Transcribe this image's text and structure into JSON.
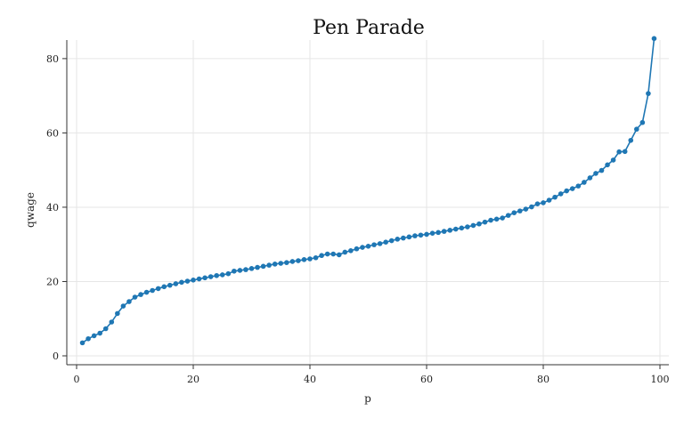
{
  "chart_data": {
    "type": "line",
    "title": "Pen Parade",
    "xlabel": "p",
    "ylabel": "qwage",
    "xlim": [
      0,
      100
    ],
    "ylim": [
      0,
      85
    ],
    "x_ticks": [
      0,
      20,
      40,
      60,
      80,
      100
    ],
    "y_ticks": [
      0,
      20,
      40,
      60,
      80
    ],
    "x_tick_labels": [
      "0",
      "20",
      "40",
      "60",
      "80",
      "100"
    ],
    "y_tick_labels": [
      "0",
      "20",
      "40",
      "60",
      "80"
    ],
    "grid": true,
    "markers": true,
    "color": "#1f77b4",
    "series": [
      {
        "x": [
          1,
          2,
          3,
          4,
          5,
          6,
          7,
          8,
          9,
          10,
          11,
          12,
          13,
          14,
          15,
          16,
          17,
          18,
          19,
          20,
          21,
          22,
          23,
          24,
          25,
          26,
          27,
          28,
          29,
          30,
          31,
          32,
          33,
          34,
          35,
          36,
          37,
          38,
          39,
          40,
          41,
          42,
          43,
          44,
          45,
          46,
          47,
          48,
          49,
          50,
          51,
          52,
          53,
          54,
          55,
          56,
          57,
          58,
          59,
          60,
          61,
          62,
          63,
          64,
          65,
          66,
          67,
          68,
          69,
          70,
          71,
          72,
          73,
          74,
          75,
          76,
          77,
          78,
          79,
          80,
          81,
          82,
          83,
          84,
          85,
          86,
          87,
          88,
          89,
          90,
          91,
          92,
          93,
          94,
          95,
          96,
          97,
          98,
          99
        ],
        "values": [
          3.5,
          4.6,
          5.4,
          6.1,
          7.3,
          9.1,
          11.4,
          13.4,
          14.6,
          15.8,
          16.5,
          17.1,
          17.6,
          18.1,
          18.6,
          19.0,
          19.4,
          19.8,
          20.1,
          20.4,
          20.7,
          21.0,
          21.3,
          21.6,
          21.8,
          22.1,
          22.8,
          23.0,
          23.2,
          23.5,
          23.8,
          24.1,
          24.4,
          24.7,
          24.9,
          25.1,
          25.4,
          25.6,
          25.9,
          26.1,
          26.4,
          27.0,
          27.4,
          27.4,
          27.2,
          27.9,
          28.3,
          28.8,
          29.2,
          29.5,
          29.9,
          30.2,
          30.6,
          31.0,
          31.4,
          31.7,
          32.0,
          32.3,
          32.5,
          32.7,
          33.0,
          33.2,
          33.5,
          33.8,
          34.1,
          34.4,
          34.7,
          35.1,
          35.5,
          36.0,
          36.5,
          36.8,
          37.1,
          37.8,
          38.5,
          39.0,
          39.5,
          40.1,
          40.9,
          41.2,
          41.9,
          42.7,
          43.6,
          44.4,
          45.0,
          45.7,
          46.7,
          47.9,
          49.1,
          49.9,
          51.4,
          52.7,
          54.9,
          55.0,
          58.0,
          61.0,
          62.8,
          70.6,
          85.4
        ]
      }
    ]
  }
}
